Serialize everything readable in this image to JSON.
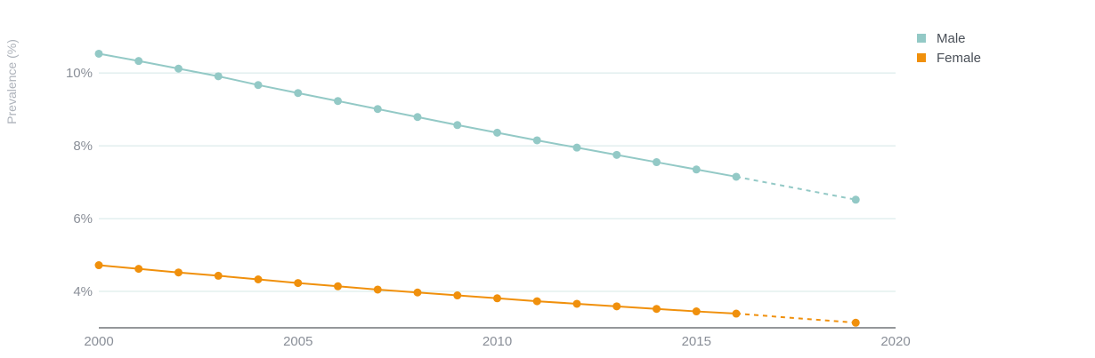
{
  "chart_data": {
    "type": "line",
    "ylabel": "Prevalence (%)",
    "xlabel": "",
    "xlim": [
      2000,
      2020
    ],
    "ylim": [
      3,
      11.2
    ],
    "x_ticks": [
      2000,
      2005,
      2010,
      2015,
      2020
    ],
    "y_ticks": [
      4,
      6,
      8,
      10
    ],
    "y_tick_labels": [
      "4%",
      "6%",
      "8%",
      "10%"
    ],
    "x_tick_labels": [
      "2000",
      "2005",
      "2010",
      "2015",
      "2020"
    ],
    "grid": "horizontal",
    "legend_position": "top-right",
    "series": [
      {
        "name": "Male",
        "color": "#93c9c6",
        "x": [
          2000,
          2001,
          2002,
          2003,
          2004,
          2005,
          2006,
          2007,
          2008,
          2009,
          2010,
          2011,
          2012,
          2013,
          2014,
          2015,
          2016,
          2019
        ],
        "y": [
          10.53,
          10.33,
          10.12,
          9.91,
          9.67,
          9.45,
          9.23,
          9.01,
          8.79,
          8.57,
          8.36,
          8.15,
          7.95,
          7.75,
          7.55,
          7.35,
          7.15,
          6.52
        ],
        "projected_from_x": 2016
      },
      {
        "name": "Female",
        "color": "#f0900c",
        "x": [
          2000,
          2001,
          2002,
          2003,
          2004,
          2005,
          2006,
          2007,
          2008,
          2009,
          2010,
          2011,
          2012,
          2013,
          2014,
          2015,
          2016,
          2019
        ],
        "y": [
          4.72,
          4.62,
          4.52,
          4.43,
          4.33,
          4.23,
          4.14,
          4.05,
          3.97,
          3.89,
          3.81,
          3.73,
          3.66,
          3.59,
          3.52,
          3.45,
          3.39,
          3.14
        ],
        "projected_from_x": 2016
      }
    ]
  }
}
